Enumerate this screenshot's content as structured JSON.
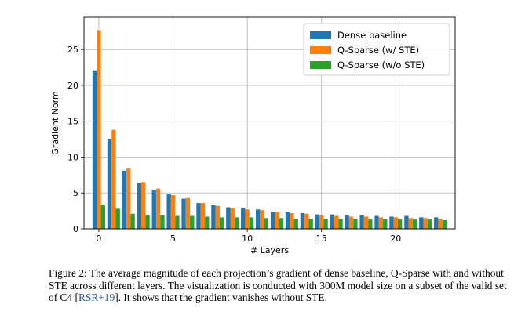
{
  "colors": {
    "dense": "#1f77b4",
    "q_sparse_ste": "#ff7f0e",
    "q_sparse_no_ste": "#2ca02c",
    "citation": "#2f5597"
  },
  "chart_data": {
    "type": "bar",
    "title": "",
    "xlabel": "# Layers",
    "ylabel": "Gradient Norm",
    "xlim": [
      -1.0,
      24.0
    ],
    "ylim": [
      0,
      29.5
    ],
    "x_ticks": [
      "0",
      "5",
      "10",
      "15",
      "20"
    ],
    "y_ticks": [
      "0",
      "5",
      "10",
      "15",
      "20",
      "25"
    ],
    "grid": true,
    "legend_position": "top-right",
    "x": [
      0,
      1,
      2,
      3,
      4,
      5,
      6,
      7,
      8,
      9,
      10,
      11,
      12,
      13,
      14,
      15,
      16,
      17,
      18,
      19,
      20,
      21,
      22,
      23
    ],
    "series": [
      {
        "name": "Dense baseline",
        "color": "#1f77b4",
        "values": [
          22.1,
          12.5,
          8.1,
          6.4,
          5.4,
          4.8,
          4.2,
          3.6,
          3.3,
          3.0,
          2.9,
          2.7,
          2.4,
          2.3,
          2.2,
          2.0,
          2.0,
          1.9,
          1.9,
          1.8,
          1.7,
          1.8,
          1.6,
          1.6
        ]
      },
      {
        "name": "Q-Sparse (w/ STE)",
        "color": "#ff7f0e",
        "values": [
          27.7,
          13.8,
          8.4,
          6.5,
          5.6,
          4.7,
          4.3,
          3.6,
          3.2,
          2.9,
          2.7,
          2.6,
          2.3,
          2.2,
          2.1,
          1.9,
          1.8,
          1.7,
          1.7,
          1.6,
          1.6,
          1.5,
          1.5,
          1.4
        ]
      },
      {
        "name": "Q-Sparse (w/o STE)",
        "color": "#2ca02c",
        "values": [
          3.4,
          2.8,
          2.1,
          1.9,
          1.9,
          1.8,
          1.8,
          1.7,
          1.6,
          1.6,
          1.6,
          1.5,
          1.5,
          1.4,
          1.4,
          1.4,
          1.4,
          1.4,
          1.3,
          1.3,
          1.3,
          1.3,
          1.3,
          1.2
        ]
      }
    ]
  },
  "caption": {
    "label": "Figure 2:",
    "text_before_cite": " The average magnitude of each projection’s gradient of dense baseline, Q-Sparse with and without STE across different layers. The visualization is conducted with 300M model size on a subset of the valid set of C4 [",
    "citation": "RSR+19",
    "text_after_cite": "]. It shows that the gradient vanishes without STE."
  }
}
